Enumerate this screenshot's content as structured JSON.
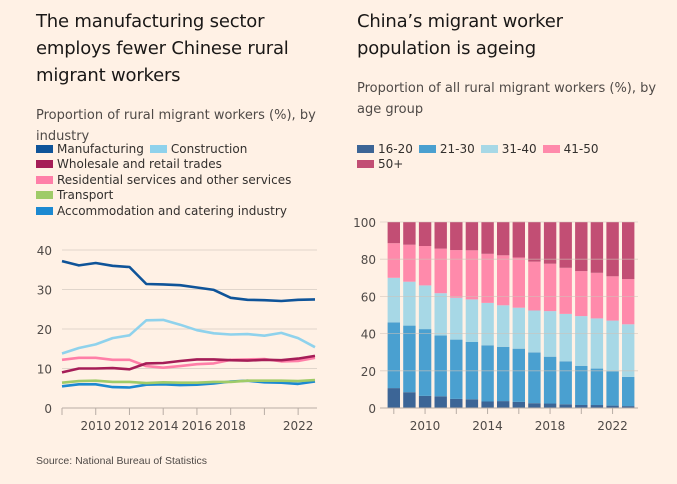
{
  "left": {
    "title": "The manufacturing sector employs fewer Chinese rural migrant workers",
    "subtitle": "Proportion of rural migrant workers (%), by industry"
  },
  "right": {
    "title": "China’s migrant worker population is ageing",
    "subtitle": "Proportion of all rural migrant workers (%), by age group"
  },
  "source": "Source: National Bureau of Statistics",
  "chart_data": [
    {
      "type": "line",
      "title": "The manufacturing sector employs fewer Chinese rural migrant workers",
      "subtitle": "Proportion of rural migrant workers (%), by industry",
      "xlabel": "",
      "ylabel": "",
      "x": [
        2008,
        2009,
        2010,
        2011,
        2012,
        2013,
        2014,
        2015,
        2016,
        2017,
        2018,
        2019,
        2020,
        2021,
        2022,
        2023
      ],
      "xticks": [
        2010,
        2012,
        2014,
        2016,
        2018,
        2022
      ],
      "yticks": [
        0,
        10,
        20,
        30,
        40
      ],
      "ylim": [
        0,
        40
      ],
      "grid": true,
      "legend": "top",
      "series": [
        {
          "name": "Manufacturing",
          "color": "#0f5499",
          "values": [
            37.2,
            36.1,
            36.7,
            36.0,
            35.7,
            31.4,
            31.3,
            31.1,
            30.5,
            29.9,
            27.9,
            27.4,
            27.3,
            27.1,
            27.4,
            27.5
          ]
        },
        {
          "name": "Construction",
          "color": "#8fd2ec",
          "values": [
            13.8,
            15.2,
            16.1,
            17.7,
            18.4,
            22.2,
            22.3,
            21.1,
            19.7,
            18.9,
            18.6,
            18.7,
            18.3,
            19.0,
            17.7,
            15.4
          ]
        },
        {
          "name": "Wholesale and retail trades",
          "color": "#a51d57",
          "values": [
            9.0,
            10.0,
            10.0,
            10.1,
            9.8,
            11.3,
            11.4,
            11.9,
            12.3,
            12.3,
            12.1,
            12.0,
            12.2,
            12.1,
            12.5,
            13.2
          ]
        },
        {
          "name": "Residential services and other services",
          "color": "#ff7fa8",
          "values": [
            12.2,
            12.7,
            12.7,
            12.2,
            12.2,
            10.6,
            10.2,
            10.6,
            11.1,
            11.3,
            12.2,
            12.3,
            12.4,
            11.8,
            11.9,
            12.7
          ]
        },
        {
          "name": "Transport",
          "color": "#9fcb68",
          "values": [
            6.4,
            6.8,
            6.9,
            6.6,
            6.6,
            6.3,
            6.5,
            6.4,
            6.4,
            6.6,
            6.6,
            6.9,
            6.9,
            6.9,
            6.8,
            7.1
          ]
        },
        {
          "name": "Accommodation and catering industry",
          "color": "#1c89d1",
          "values": [
            5.5,
            6.0,
            6.0,
            5.3,
            5.2,
            5.9,
            6.0,
            5.8,
            5.9,
            6.2,
            6.7,
            6.9,
            6.5,
            6.4,
            6.1,
            6.7
          ]
        }
      ]
    },
    {
      "type": "bar",
      "stacked": true,
      "title": "China’s migrant worker population is ageing",
      "subtitle": "Proportion of all rural migrant workers (%), by age group",
      "xlabel": "",
      "ylabel": "",
      "categories": [
        2008,
        2009,
        2010,
        2011,
        2012,
        2013,
        2014,
        2015,
        2016,
        2017,
        2018,
        2019,
        2020,
        2021,
        2022,
        2023
      ],
      "xticks": [
        2010,
        2014,
        2018,
        2022
      ],
      "yticks": [
        0,
        20,
        40,
        60,
        80,
        100
      ],
      "ylim": [
        0,
        100
      ],
      "grid": true,
      "legend": "top",
      "series": [
        {
          "name": "16-20",
          "color": "#3c6596",
          "values": [
            10.7,
            8.5,
            6.5,
            6.3,
            4.9,
            4.7,
            3.5,
            3.7,
            3.3,
            2.6,
            2.4,
            2.0,
            1.6,
            1.6,
            1.3,
            1.0
          ]
        },
        {
          "name": "21-30",
          "color": "#4aa0d0",
          "values": [
            35.3,
            35.8,
            35.9,
            32.7,
            31.9,
            30.8,
            30.2,
            29.2,
            28.6,
            27.3,
            25.2,
            23.1,
            21.1,
            19.6,
            18.5,
            15.7
          ]
        },
        {
          "name": "31-40",
          "color": "#a7d8e6",
          "values": [
            24.0,
            23.6,
            23.5,
            22.7,
            22.5,
            22.9,
            22.8,
            22.3,
            22.0,
            22.5,
            24.5,
            25.5,
            26.7,
            27.0,
            27.2,
            28.3
          ]
        },
        {
          "name": "41-50",
          "color": "#ff8aab",
          "values": [
            18.6,
            19.9,
            21.2,
            24.0,
            25.6,
            26.4,
            26.4,
            26.9,
            27.0,
            26.3,
            25.5,
            24.8,
            24.2,
            24.5,
            23.8,
            24.3
          ]
        },
        {
          "name": "50+",
          "color": "#c24e74",
          "values": [
            11.4,
            12.2,
            12.9,
            14.3,
            15.1,
            15.2,
            17.1,
            17.9,
            19.2,
            21.3,
            22.4,
            24.6,
            26.4,
            27.3,
            29.2,
            30.7
          ]
        }
      ]
    }
  ]
}
